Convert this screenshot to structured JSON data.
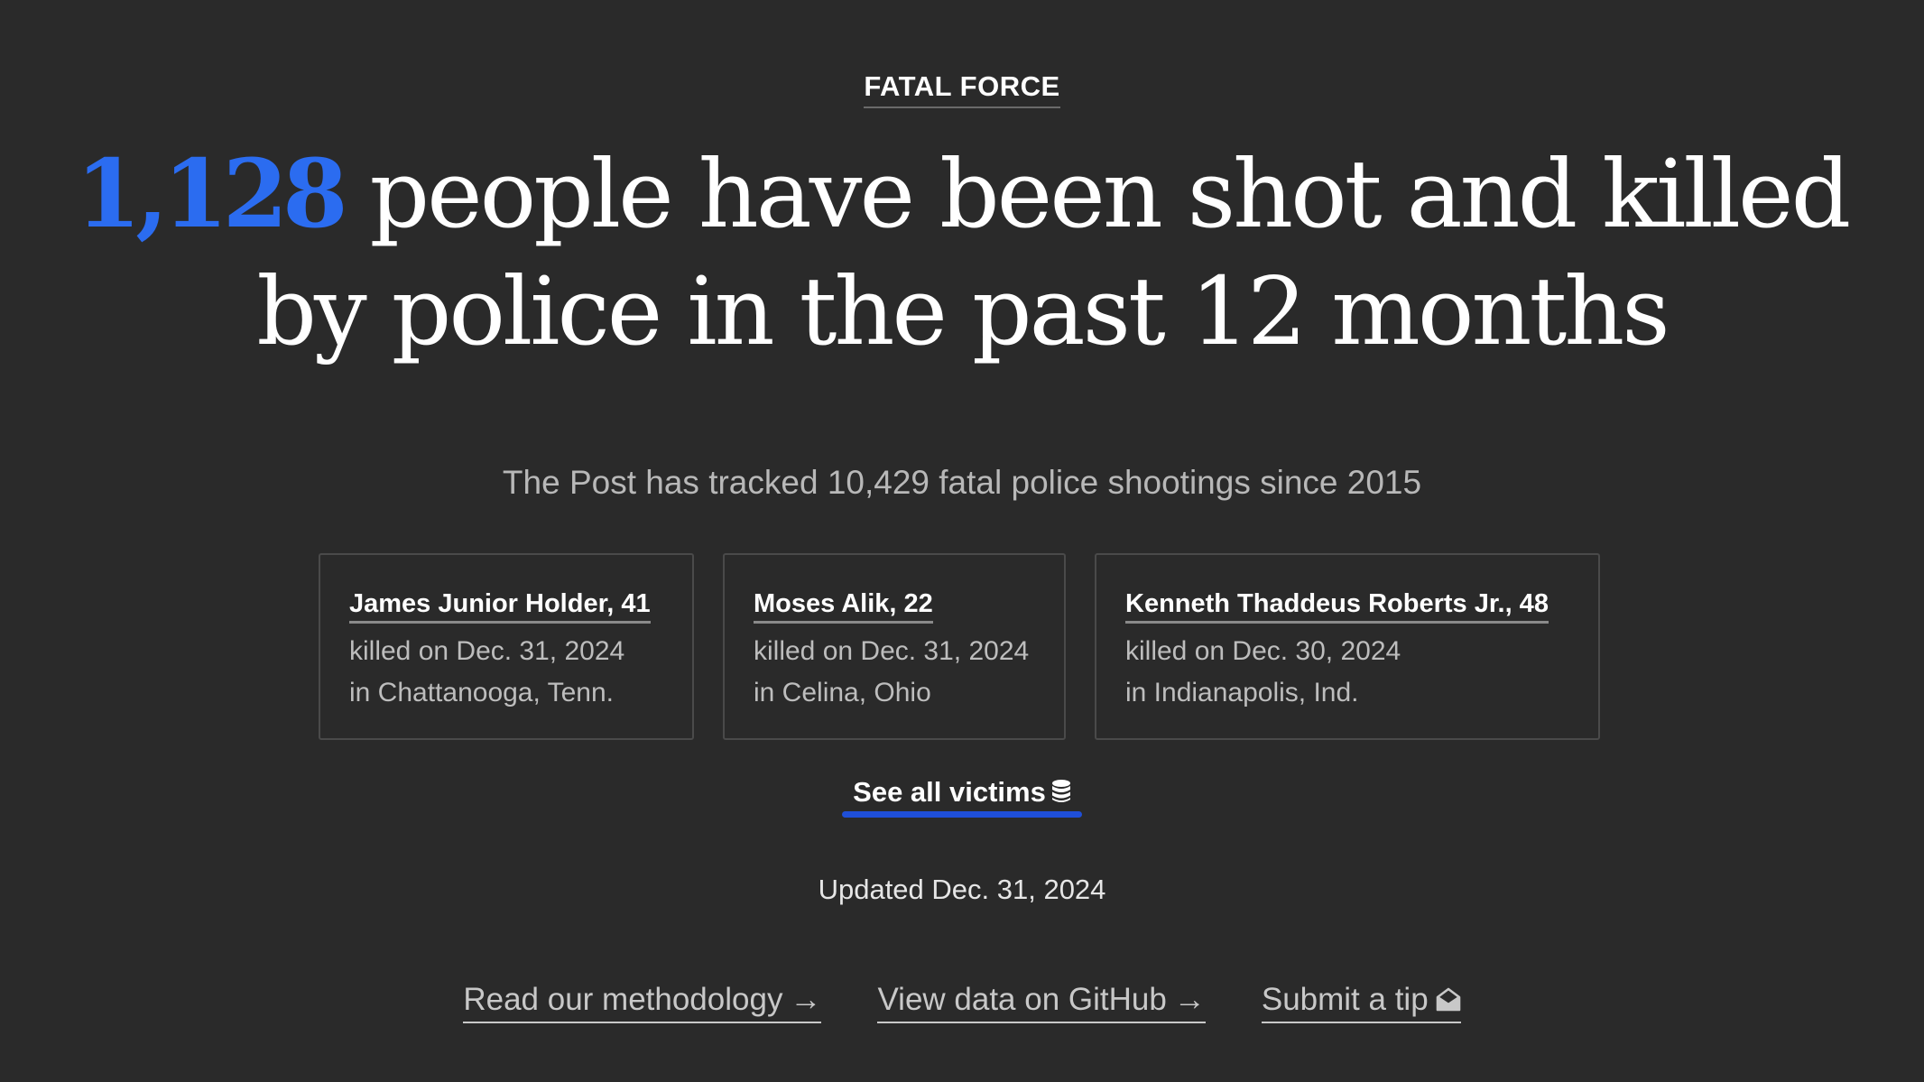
{
  "kicker": {
    "label": "FATAL FORCE"
  },
  "headline": {
    "count": "1,128",
    "text": " people have been shot and killed by police in the past 12 months"
  },
  "subhead": "The Post has tracked 10,429 fatal police shootings since 2015",
  "victims": [
    {
      "name": "James Junior Holder, 41",
      "date": "killed on Dec. 31, 2024",
      "location": "in Chattanooga, Tenn."
    },
    {
      "name": "Moses Alik, 22",
      "date": "killed on Dec. 31, 2024",
      "location": "in Celina, Ohio"
    },
    {
      "name": "Kenneth Thaddeus Roberts Jr., 48",
      "date": "killed on Dec. 30, 2024",
      "location": "in Indianapolis, Ind."
    }
  ],
  "see_all": {
    "label": "See all victims",
    "icon": "database-icon"
  },
  "updated": "Updated Dec. 31, 2024",
  "links": {
    "methodology": "Read our methodology",
    "github": "View data on GitHub",
    "tip": "Submit a tip",
    "arrow": "→"
  },
  "colors": {
    "background": "#2a2a2a",
    "accent": "#2b6cf0",
    "underline_blue": "#1f4fd8"
  }
}
